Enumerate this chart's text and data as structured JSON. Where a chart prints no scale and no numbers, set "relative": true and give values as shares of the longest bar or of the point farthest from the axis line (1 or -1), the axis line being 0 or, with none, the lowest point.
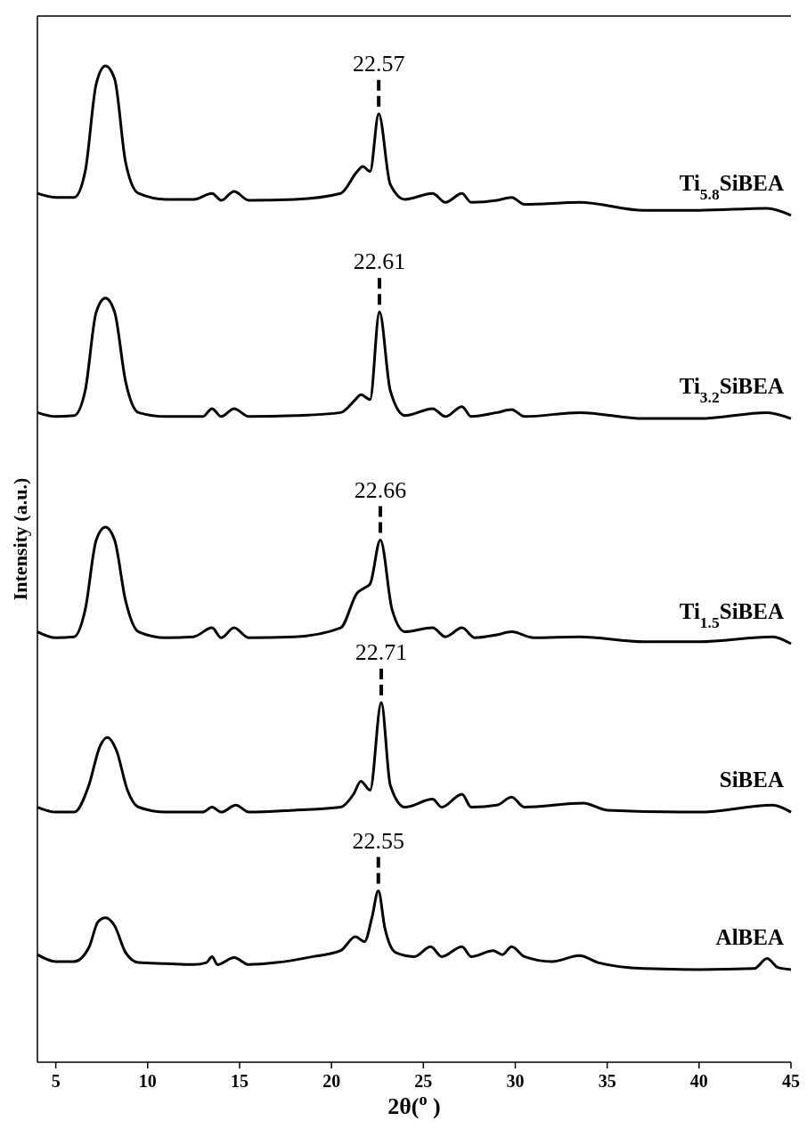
{
  "chart_data": {
    "type": "line",
    "relative": true,
    "xlabel": "2θ($^{o}$ )",
    "ylabel": "Intensity (a.u.)",
    "xlim": [
      4,
      45
    ],
    "xticks": [
      5,
      10,
      15,
      20,
      25,
      30,
      35,
      40,
      45
    ],
    "legend": false,
    "annotations": [
      {
        "text": "22.57",
        "x": 22.57,
        "y": 0.952
      },
      {
        "text": "22.61",
        "x": 22.61,
        "y": 0.753
      },
      {
        "text": "22.66",
        "x": 22.66,
        "y": 0.524
      },
      {
        "text": "22.71",
        "x": 22.71,
        "y": 0.361
      },
      {
        "text": "22.55",
        "x": 22.55,
        "y": 0.172
      }
    ],
    "series": [
      {
        "name": "Ti$_{5.8}$SiBEA",
        "color": "#000000",
        "x": [
          4,
          5,
          6,
          6.6,
          7.2,
          7.7,
          8.2,
          8.8,
          9.5,
          11,
          12.5,
          13.5,
          14,
          14.7,
          15.5,
          18,
          20.5,
          21.4,
          21.7,
          22.1,
          22.57,
          23.2,
          24,
          25.5,
          26.2,
          27.1,
          27.6,
          29,
          29.8,
          30.5,
          33.5,
          37,
          40,
          43.7,
          45
        ],
        "values": [
          0.872,
          0.868,
          0.868,
          0.894,
          0.982,
          1,
          0.987,
          0.903,
          0.872,
          0.866,
          0.866,
          0.872,
          0.865,
          0.874,
          0.865,
          0.866,
          0.872,
          0.894,
          0.899,
          0.894,
          0.952,
          0.881,
          0.866,
          0.872,
          0.863,
          0.872,
          0.863,
          0.865,
          0.868,
          0.861,
          0.863,
          0.855,
          0.855,
          0.857,
          0.85
        ]
      },
      {
        "name": "Ti$_{3.2}$SiBEA",
        "color": "#000000",
        "x": [
          4,
          5,
          6,
          6.6,
          7.2,
          7.7,
          8.2,
          8.8,
          9.5,
          11,
          13,
          13.5,
          14,
          14.7,
          15.5,
          18,
          20.5,
          21.3,
          21.6,
          22.1,
          22.61,
          23.2,
          24,
          25.5,
          26.2,
          27.1,
          27.6,
          29,
          29.8,
          30.5,
          33.5,
          37,
          40,
          43.7,
          45
        ],
        "values": [
          0.652,
          0.648,
          0.649,
          0.674,
          0.753,
          0.767,
          0.753,
          0.683,
          0.652,
          0.648,
          0.648,
          0.656,
          0.648,
          0.656,
          0.648,
          0.649,
          0.652,
          0.665,
          0.67,
          0.665,
          0.753,
          0.674,
          0.649,
          0.656,
          0.648,
          0.658,
          0.648,
          0.652,
          0.655,
          0.648,
          0.652,
          0.646,
          0.646,
          0.652,
          0.646
        ]
      },
      {
        "name": "Ti$_{1.5}$SiBEA",
        "color": "#000000",
        "x": [
          4,
          5,
          6,
          6.6,
          7.2,
          7.7,
          8.2,
          8.8,
          9.5,
          11,
          12.5,
          13.5,
          14,
          14.7,
          15.5,
          18,
          20.5,
          21.4,
          21.8,
          22.1,
          22.66,
          23.3,
          24,
          25.5,
          26.2,
          27.1,
          27.8,
          29,
          29.8,
          31,
          33.5,
          37,
          40,
          44,
          45
        ],
        "values": [
          0.432,
          0.426,
          0.427,
          0.454,
          0.524,
          0.537,
          0.524,
          0.463,
          0.432,
          0.426,
          0.427,
          0.436,
          0.426,
          0.436,
          0.426,
          0.427,
          0.436,
          0.471,
          0.476,
          0.48,
          0.524,
          0.454,
          0.432,
          0.436,
          0.427,
          0.436,
          0.426,
          0.429,
          0.432,
          0.426,
          0.427,
          0.422,
          0.422,
          0.427,
          0.42
        ]
      },
      {
        "name": "SiBEA",
        "color": "#000000",
        "x": [
          4,
          5,
          6,
          6.8,
          7.4,
          7.8,
          8.3,
          8.9,
          9.5,
          11,
          13,
          13.5,
          14,
          14.8,
          15.5,
          18,
          20.5,
          21.2,
          21.6,
          22.1,
          22.71,
          23.2,
          24,
          25.5,
          26,
          27.1,
          27.6,
          29,
          29.8,
          30.5,
          33.7,
          35,
          40,
          44,
          45
        ],
        "values": [
          0.256,
          0.251,
          0.251,
          0.278,
          0.317,
          0.326,
          0.313,
          0.273,
          0.256,
          0.251,
          0.251,
          0.256,
          0.251,
          0.258,
          0.251,
          0.253,
          0.256,
          0.269,
          0.282,
          0.273,
          0.361,
          0.278,
          0.256,
          0.264,
          0.256,
          0.269,
          0.256,
          0.258,
          0.266,
          0.256,
          0.26,
          0.253,
          0.251,
          0.258,
          0.251
        ]
      },
      {
        "name": "AlBEA",
        "color": "#000000",
        "x": [
          4,
          5,
          6,
          6.8,
          7.3,
          7.7,
          8.2,
          8.8,
          9.5,
          11,
          12.5,
          13.2,
          13.5,
          13.8,
          14.7,
          15.5,
          17,
          19,
          20.5,
          21.3,
          21.8,
          22.2,
          22.55,
          22.9,
          23.5,
          24.5,
          25.4,
          26,
          27.1,
          27.6,
          28.8,
          29.3,
          29.8,
          30.5,
          32,
          33.5,
          34.5,
          37,
          40,
          43,
          43.7,
          44.3,
          45
        ],
        "values": [
          0.108,
          0.101,
          0.101,
          0.115,
          0.141,
          0.145,
          0.137,
          0.11,
          0.1,
          0.099,
          0.098,
          0.1,
          0.106,
          0.098,
          0.105,
          0.098,
          0.1,
          0.106,
          0.112,
          0.126,
          0.121,
          0.145,
          0.172,
          0.135,
          0.11,
          0.106,
          0.116,
          0.106,
          0.116,
          0.106,
          0.112,
          0.108,
          0.116,
          0.106,
          0.101,
          0.107,
          0.1,
          0.094,
          0.093,
          0.094,
          0.104,
          0.095,
          0.093
        ]
      }
    ]
  }
}
